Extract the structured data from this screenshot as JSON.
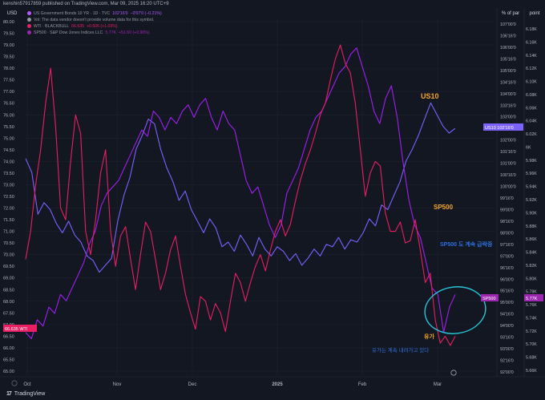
{
  "header": {
    "published_text": "kenshin57917859 published on TradingView.com, Mar 09, 2025 16:20 UTC+9"
  },
  "axis_heads": {
    "left": "USD",
    "pct": "% of par",
    "point": "point"
  },
  "legend": [
    {
      "name": "US Government Bonds 10 YR · 1D · TVC",
      "value": "102'16'0",
      "change": "−0'07'0 (−0.21%)",
      "color": "#b25cff"
    },
    {
      "name": "Vol: The data vendor doesn't provide volume data for this symbol.",
      "value": "",
      "change": "",
      "color": "#9598a1"
    },
    {
      "name": "WTI · BLACKBULL",
      "value": "66.635",
      "change": "+0.605 (+1.03%)",
      "color": "#e91e63"
    },
    {
      "name": "SP500 · S&P Dow Jones Indices LLC",
      "value": "5.77K",
      "change": "+51.60 (+0.90%)",
      "color": "#9c27b0"
    }
  ],
  "price_tags": {
    "wti": "66.635  WTI",
    "us10": "US10  102'16'0",
    "sp500_label": "SP500",
    "sp500_value": "5.77K"
  },
  "annotations": {
    "us10": "US10",
    "sp500": "SP500",
    "sp500_note": "SP500 도 계속 급락중",
    "oil": "유가",
    "oil_note": "유가는 계속 내려가고 있다"
  },
  "footer": {
    "logo": "17",
    "brand": "TradingView"
  },
  "colors": {
    "background": "#131722",
    "wti": "#e91e63",
    "us10": "#7b61ff",
    "sp500": "#9c27b0",
    "bond_violet": "#a020f0",
    "orange": "#f5a623",
    "blue_note": "#2f6fdc",
    "circle": "#26c6da",
    "grid": "#2a2e39"
  },
  "chart_data": {
    "type": "line",
    "title": "",
    "x_labels": [
      "Oct",
      "Nov",
      "Dec",
      "2025",
      "Feb",
      "Mar"
    ],
    "y_left": {
      "label": "USD",
      "ticks": [
        "80.00",
        "79.50",
        "79.00",
        "78.50",
        "78.00",
        "77.50",
        "77.00",
        "76.50",
        "76.00",
        "75.50",
        "75.00",
        "74.50",
        "74.00",
        "73.50",
        "73.00",
        "72.50",
        "72.00",
        "71.50",
        "71.00",
        "70.50",
        "70.00",
        "69.50",
        "69.00",
        "68.50",
        "68.00",
        "67.50",
        "67.00",
        "66.50",
        "66.00",
        "65.50",
        "65.00"
      ],
      "range": [
        65.0,
        80.0
      ]
    },
    "y_pct": {
      "label": "% of par",
      "ticks": [
        "107'00'0",
        "106'16'0",
        "106'00'0",
        "105'16'0",
        "105'00'0",
        "104'16'0",
        "104'00'0",
        "103'16'0",
        "103'00'0",
        "102'16'0",
        "102'00'0",
        "101'16'0",
        "101'00'0",
        "100'16'0",
        "100'00'0",
        "99'16'0",
        "99'00'0",
        "98'16'0",
        "98'00'0",
        "97'16'0",
        "97'00'0",
        "96'16'0",
        "96'00'0",
        "95'16'0",
        "95'00'0",
        "94'16'0",
        "94'00'0",
        "93'16'0",
        "93'00'0",
        "92'16'0",
        "92'00'0"
      ],
      "range": [
        92.0,
        107.0
      ]
    },
    "y_point": {
      "label": "point",
      "ticks": [
        "6.18K",
        "6.16K",
        "6.14K",
        "6.12K",
        "6.10K",
        "6.08K",
        "6.06K",
        "6.04K",
        "6.02K",
        "6K",
        "5.98K",
        "5.96K",
        "5.94K",
        "5.92K",
        "5.90K",
        "5.88K",
        "5.86K",
        "5.84K",
        "5.82K",
        "5.80K",
        "5.78K",
        "5.76K",
        "5.74K",
        "5.72K",
        "5.70K",
        "5.68K",
        "5.66K"
      ],
      "range": [
        5.65,
        6.19
      ]
    },
    "series": [
      {
        "name": "WTI · BLACKBULL",
        "axis": "left",
        "color": "#e91e63",
        "values": [
          69.8,
          71.0,
          73.0,
          74.5,
          76.5,
          78.0,
          75.5,
          72.0,
          71.5,
          74.0,
          76.0,
          75.2,
          71.0,
          70.0,
          71.5,
          73.5,
          74.5,
          71.0,
          69.5,
          70.8,
          71.2,
          69.8,
          68.5,
          70.0,
          71.4,
          71.0,
          69.8,
          68.5,
          69.2,
          70.2,
          70.8,
          69.5,
          68.3,
          67.5,
          66.8,
          68.2,
          68.0,
          67.2,
          67.9,
          67.5,
          66.7,
          68.0,
          69.2,
          68.8,
          68.0,
          68.8,
          69.5,
          70.0,
          69.3,
          70.2,
          71.0,
          71.5,
          70.8,
          71.3,
          72.3,
          73.2,
          73.9,
          74.5,
          75.2,
          76.0,
          76.5,
          77.5,
          78.4,
          79.0,
          78.2,
          77.8,
          76.5,
          74.5,
          72.5,
          73.5,
          74.0,
          73.8,
          71.8,
          71.0,
          71.0,
          71.4,
          70.5,
          70.6,
          71.5,
          70.2,
          68.8,
          69.2,
          67.2,
          66.2,
          66.5,
          66.1,
          66.5
        ]
      },
      {
        "name": "US Government Bonds 10 YR",
        "axis": "pct",
        "color": "#7b61ff",
        "values": [
          101.2,
          100.6,
          98.8,
          99.3,
          99.0,
          98.4,
          98.0,
          98.5,
          97.9,
          97.6,
          97.0,
          96.8,
          96.3,
          96.6,
          96.9,
          98.5,
          99.6,
          100.4,
          101.6,
          102.2,
          102.9,
          102.7,
          101.6,
          100.8,
          100.2,
          99.4,
          99.8,
          99.0,
          98.5,
          98.0,
          98.6,
          98.2,
          97.4,
          97.6,
          97.2,
          97.9,
          97.5,
          97.0,
          97.8,
          97.3,
          97.0,
          97.4,
          97.2,
          96.8,
          97.1,
          96.6,
          96.9,
          97.3,
          97.0,
          97.5,
          97.4,
          97.8,
          97.3,
          97.7,
          97.6,
          98.0,
          98.6,
          98.3,
          99.2,
          99.0,
          99.6,
          100.2,
          101.1,
          101.6,
          102.2,
          102.9,
          103.6,
          103.1,
          102.6,
          102.3,
          102.5
        ]
      },
      {
        "name": "SP500 · S&P Dow Jones Indices LLC",
        "axis": "point",
        "color": "#9c27b0",
        "values": [
          5.71,
          5.7,
          5.73,
          5.72,
          5.75,
          5.74,
          5.77,
          5.76,
          5.78,
          5.8,
          5.82,
          5.85,
          5.87,
          5.91,
          5.93,
          5.94,
          5.95,
          5.97,
          5.99,
          6.01,
          6.03,
          6.02,
          6.06,
          6.05,
          6.03,
          6.05,
          6.04,
          6.06,
          6.07,
          6.05,
          6.07,
          6.08,
          6.05,
          6.03,
          6.06,
          6.04,
          6.03,
          5.99,
          5.95,
          5.93,
          5.94,
          5.91,
          5.88,
          5.86,
          5.88,
          5.93,
          5.95,
          5.97,
          6.0,
          6.03,
          6.05,
          6.06,
          6.08,
          6.1,
          6.12,
          6.13,
          6.15,
          6.16,
          6.13,
          6.1,
          6.06,
          6.04,
          6.08,
          6.1,
          6.05,
          5.98,
          5.92,
          5.88,
          5.86,
          5.82,
          5.78,
          5.77,
          5.71,
          5.75,
          5.77
        ]
      }
    ]
  }
}
